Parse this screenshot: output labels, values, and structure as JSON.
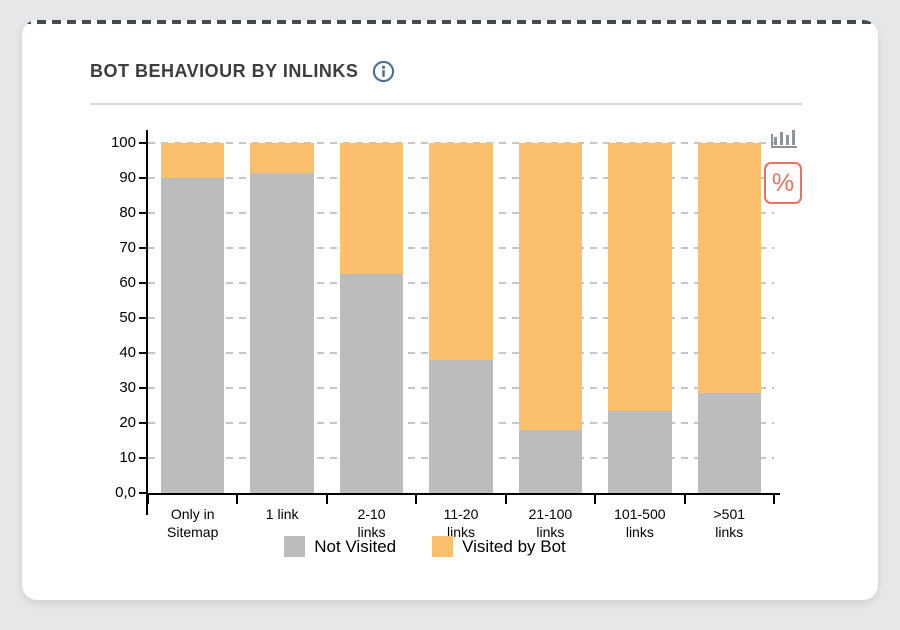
{
  "header": {
    "title": "BOT BEHAVIOUR BY INLINKS",
    "info_icon": "info-circle"
  },
  "toolbar": {
    "percent_toggle_label": "%",
    "accent_color": "#e8735c"
  },
  "colors": {
    "background": "#e6e7e9",
    "card": "#ffffff",
    "title_text": "#3d3d3d",
    "info_icon": "#4a7093",
    "divider": "#d9d9d9",
    "not_visited": "#bcbcbe",
    "visited_by_bot": "#fcc06d",
    "gridline": "#c6c6c6",
    "axis": "#000000",
    "dashed_top_border": "#454b52"
  },
  "chart_data": {
    "type": "bar",
    "stacked": true,
    "unit": "percent",
    "title": "BOT BEHAVIOUR BY INLINKS",
    "categories": [
      "Only in\nSitemap",
      "1 link",
      "2-10\nlinks",
      "11-20\nlinks",
      "21-100\nlinks",
      "101-500\nlinks",
      ">501\nlinks"
    ],
    "series": [
      {
        "name": "Not Visited",
        "color": "#bcbcbe",
        "values": [
          90,
          91.5,
          62.5,
          38,
          18,
          23.5,
          28.5
        ]
      },
      {
        "name": "Visited by Bot",
        "color": "#fcc06d",
        "values": [
          10,
          8.5,
          37.5,
          62,
          82,
          76.5,
          71.5
        ]
      }
    ],
    "ylim": [
      0,
      100
    ],
    "yticks": [
      0,
      10,
      20,
      30,
      40,
      50,
      60,
      70,
      80,
      90,
      100
    ],
    "ytick_labels": [
      "0,0",
      "10",
      "20",
      "30",
      "40",
      "50",
      "60",
      "70",
      "80",
      "90",
      "100"
    ],
    "grid": "horizontal-dashed",
    "legend_position": "bottom-center"
  }
}
